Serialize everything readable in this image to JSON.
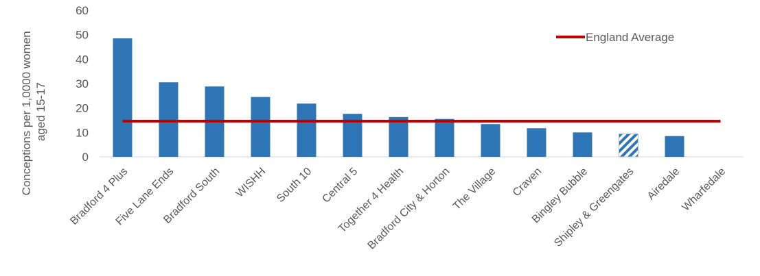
{
  "chart_data": {
    "type": "bar",
    "categories": [
      "Bradford 4 Plus",
      "Five Lane Ends",
      "Bradford South",
      "WISHH",
      "South 10",
      "Central 5",
      "Together 4 Health",
      "Bradford City & Horton",
      "The Village",
      "Craven",
      "Bingley Bubble",
      "Shipley & Greengates",
      "Airedale",
      "Wharfedale"
    ],
    "series": [
      {
        "values": [
          48.5,
          30.5,
          28.8,
          24.5,
          21.8,
          17.6,
          16.3,
          15.5,
          13.4,
          11.7,
          10.0,
          9.4,
          8.5,
          0
        ],
        "color": "#2e75b6",
        "hatched_categories": [
          "Shipley & Greengates"
        ]
      },
      {
        "name": "England Average",
        "type": "line",
        "value": 14.6,
        "color": "#c00000"
      }
    ],
    "ylabel_lines": [
      "Conceptions per 1,0000 women",
      "aged 15-17"
    ],
    "ylim": [
      0,
      60
    ],
    "yticks": [
      0,
      10,
      20,
      30,
      40,
      50,
      60
    ],
    "grid": false,
    "legend_position": "top-right"
  }
}
